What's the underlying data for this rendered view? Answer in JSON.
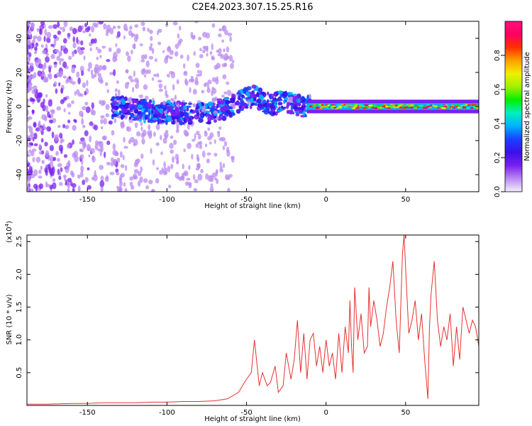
{
  "title": "C2E4.2023.307.15.25.R16",
  "colors": {
    "snr_line": "#e83030",
    "axes": "#000000"
  },
  "chart_data": [
    {
      "type": "heatmap",
      "title": "C2E4.2023.307.15.25.R16",
      "xlabel": "Height of straight line (km)",
      "ylabel": "Frequency (Hz)",
      "xlim": [
        -188,
        96
      ],
      "ylim": [
        -50,
        50
      ],
      "xticks": [
        -150,
        -100,
        -50,
        0,
        50
      ],
      "yticks": [
        -40,
        -20,
        0,
        20,
        40
      ],
      "colorbar": {
        "label": "Normalized spectral amplitude",
        "range": [
          0,
          1
        ],
        "ticks": [
          "0.0",
          "0.2",
          "0.4",
          "0.6",
          "0.8"
        ],
        "colormap": [
          "#f5eefd",
          "#b98bf0",
          "#7a1ff0",
          "#3a10e8",
          "#1a40ff",
          "#00b0ff",
          "#00f0c0",
          "#00f000",
          "#a0f000",
          "#f0f000",
          "#ffa000",
          "#ff3000",
          "#ff0060",
          "#ff1080"
        ]
      },
      "ridge_description": "Spectral energy centered near 0 Hz, scattered broadband noise below about -60 km; from about -10 km onward a narrow high-amplitude band at 0 Hz",
      "ridge_center_hz": [
        {
          "x": -135,
          "y": 0
        },
        {
          "x": -110,
          "y": -3
        },
        {
          "x": -90,
          "y": -4
        },
        {
          "x": -75,
          "y": -4
        },
        {
          "x": -60,
          "y": 0
        },
        {
          "x": -50,
          "y": 5
        },
        {
          "x": -45,
          "y": 6
        },
        {
          "x": -35,
          "y": 1
        },
        {
          "x": -25,
          "y": 3
        },
        {
          "x": -15,
          "y": 0
        },
        {
          "x": 0,
          "y": 0
        },
        {
          "x": 50,
          "y": 0
        },
        {
          "x": 96,
          "y": 0
        }
      ]
    },
    {
      "type": "line",
      "xlabel": "Height of straight line (km)",
      "ylabel": "SNR (10 * v/v)",
      "y_multiplier": "(x10",
      "y_multiplier_exp": "4",
      "y_multiplier_close": ")",
      "xlim": [
        -188,
        96
      ],
      "ylim": [
        0,
        2.6
      ],
      "xticks": [
        -150,
        -100,
        -50,
        0,
        50
      ],
      "yticks": [
        "0.5",
        "1.0",
        "1.5",
        "2.0",
        "2.5"
      ],
      "series": [
        {
          "values_x": [
            -188,
            -175,
            -160,
            -150,
            -140,
            -130,
            -120,
            -110,
            -100,
            -90,
            -80,
            -70,
            -62,
            -55,
            -50,
            -47,
            -45,
            -42,
            -40,
            -37,
            -35,
            -32,
            -30,
            -27,
            -25,
            -22,
            -20,
            -18,
            -16,
            -14,
            -12,
            -10,
            -8,
            -6,
            -4,
            -2,
            0,
            2,
            4,
            6,
            8,
            10,
            12,
            14,
            15,
            16,
            17,
            18,
            20,
            22,
            24,
            26,
            27,
            28,
            30,
            32,
            34,
            36,
            38,
            40,
            42,
            44,
            46,
            48,
            49,
            50,
            52,
            54,
            56,
            58,
            60,
            62,
            64,
            65,
            66,
            68,
            70,
            72,
            74,
            76,
            78,
            80,
            82,
            84,
            86,
            88,
            90,
            92,
            94,
            96
          ],
          "values": [
            0.02,
            0.02,
            0.03,
            0.03,
            0.04,
            0.04,
            0.04,
            0.05,
            0.05,
            0.06,
            0.06,
            0.07,
            0.1,
            0.2,
            0.4,
            0.5,
            1.0,
            0.3,
            0.5,
            0.3,
            0.35,
            0.6,
            0.2,
            0.3,
            0.8,
            0.4,
            0.7,
            1.3,
            0.5,
            1.1,
            0.4,
            1.0,
            1.1,
            0.6,
            0.9,
            0.5,
            1.0,
            0.6,
            0.8,
            0.4,
            1.1,
            0.5,
            1.2,
            0.8,
            1.6,
            0.9,
            0.5,
            1.8,
            1.0,
            1.4,
            0.8,
            0.9,
            1.8,
            1.2,
            1.6,
            1.3,
            0.9,
            1.1,
            1.5,
            1.8,
            2.2,
            1.3,
            0.8,
            2.3,
            2.6,
            2.1,
            1.1,
            1.3,
            1.6,
            1.0,
            1.4,
            0.7,
            0.1,
            1.2,
            1.7,
            2.2,
            1.3,
            0.9,
            1.2,
            1.0,
            1.4,
            0.6,
            1.2,
            0.7,
            1.5,
            1.3,
            1.1,
            1.3,
            1.2,
            0.9
          ]
        }
      ]
    }
  ]
}
